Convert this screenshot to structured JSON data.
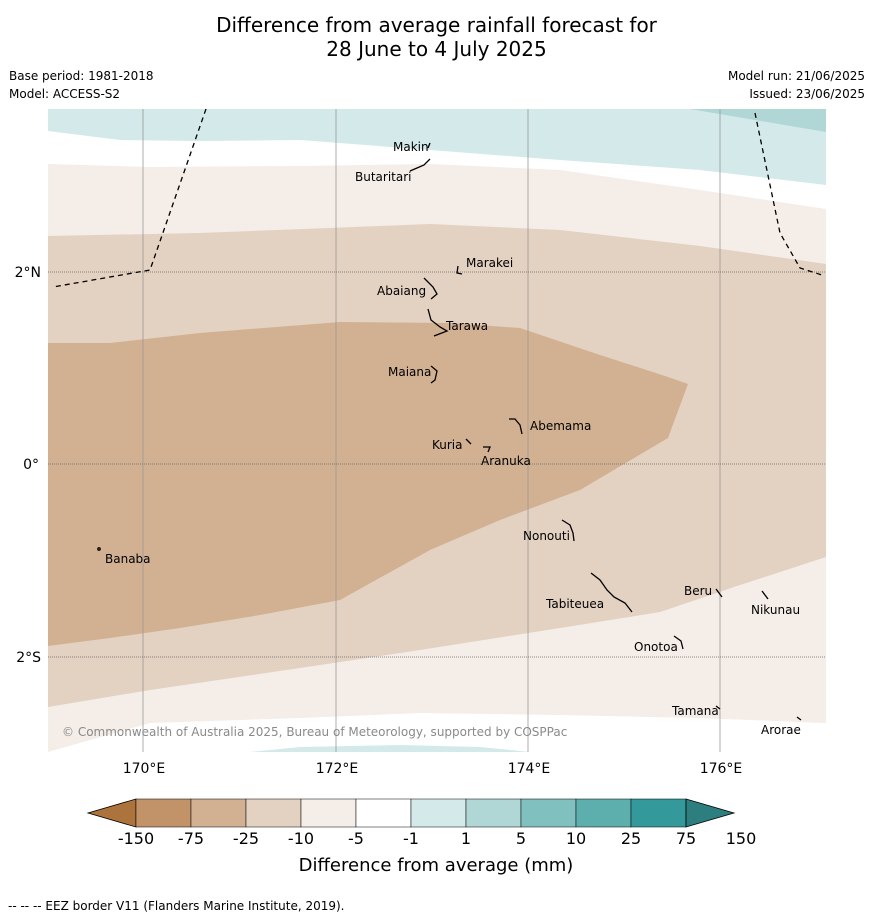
{
  "header": {
    "title_line1": "Difference from average rainfall forecast for",
    "title_line2": "28 June to 4 July 2025",
    "base_period": "Base period: 1981-2018",
    "model": "Model: ACCESS-S2",
    "model_run": "Model run: 21/06/2025",
    "issued": "Issued: 23/06/2025"
  },
  "map": {
    "lat_labels": [
      "2°N",
      "0°",
      "2°S"
    ],
    "lon_labels": [
      "170°E",
      "172°E",
      "174°E",
      "176°E"
    ],
    "copyright": "© Commonwealth of Australia 2025, Bureau of Meteorology, supported by COSPPac",
    "places": [
      "Makin",
      "Butaritari",
      "Marakei",
      "Abaiang",
      "Tarawa",
      "Maiana",
      "Abemama",
      "Kuria",
      "Aranuka",
      "Banaba",
      "Nonouti",
      "Beru",
      "Tabiteuea",
      "Nikunau",
      "Onotoa",
      "Tamana",
      "Arorae"
    ]
  },
  "colorbar": {
    "ticks": [
      "-150",
      "-75",
      "-25",
      "-10",
      "-5",
      "-1",
      "1",
      "5",
      "10",
      "25",
      "75",
      "150"
    ],
    "colors": [
      "#ad733c",
      "#c29368",
      "#d2b192",
      "#e3d1c1",
      "#f4ede8",
      "#ffffff",
      "#d4e9e9",
      "#b0d6d6",
      "#80c1c0",
      "#5dafad",
      "#34999a",
      "#2d7e7f"
    ],
    "label": "Difference from average (mm)"
  },
  "footer": {
    "eez_note": "-- -- -- EEZ border V11 (Flanders Marine Institute, 2019)."
  }
}
